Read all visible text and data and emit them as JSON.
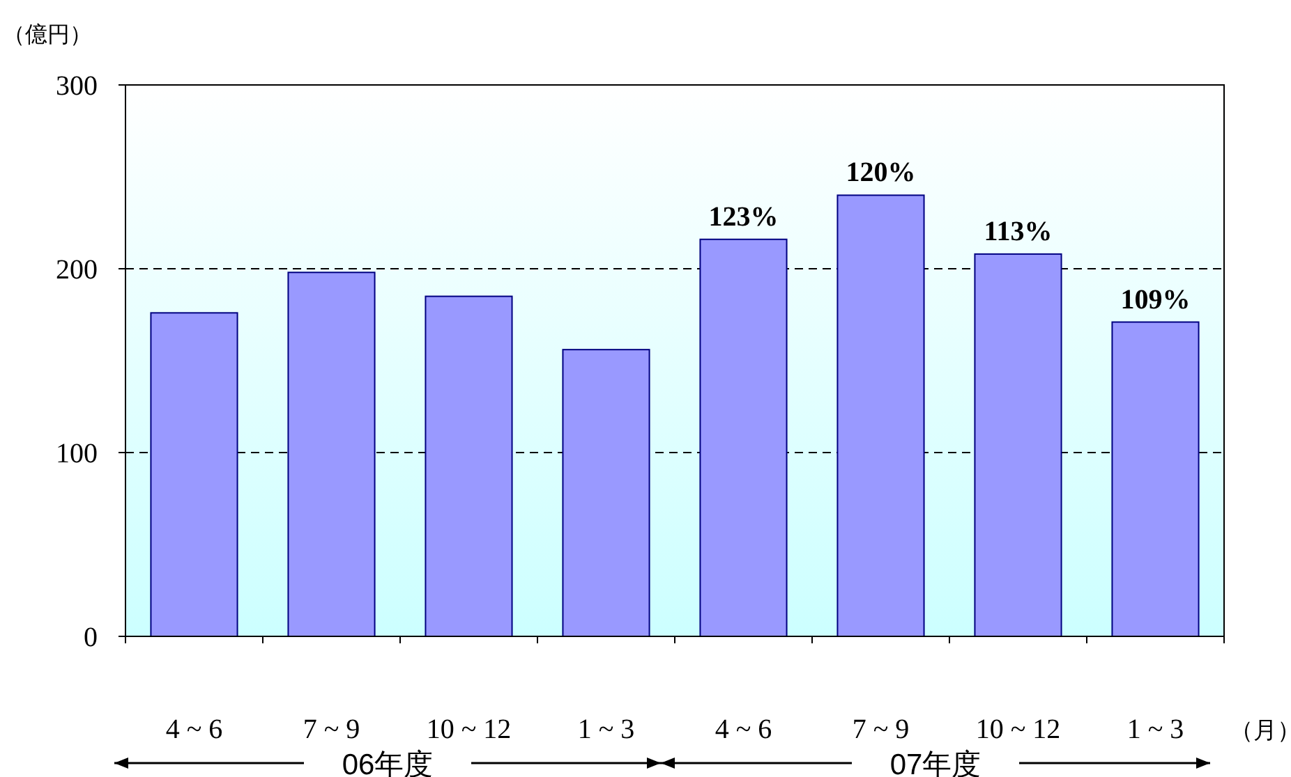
{
  "chart_data": {
    "type": "bar",
    "ylabel": "（億円）",
    "xlabel": "（月）",
    "categories": [
      "4 ~ 6",
      "7 ~ 9",
      "10 ~ 12",
      "1 ~ 3",
      "4 ~ 6",
      "7 ~ 9",
      "10 ~ 12",
      "1 ~ 3"
    ],
    "values": [
      176,
      198,
      185,
      156,
      216,
      240,
      208,
      171
    ],
    "color": "#9999ff",
    "ylim": [
      0,
      300
    ],
    "yticks": [
      0,
      100,
      200,
      300
    ],
    "grid": "y",
    "annotations": [
      "06年度",
      "07年度",
      "123%",
      "120%",
      "113%",
      "109%"
    ]
  }
}
